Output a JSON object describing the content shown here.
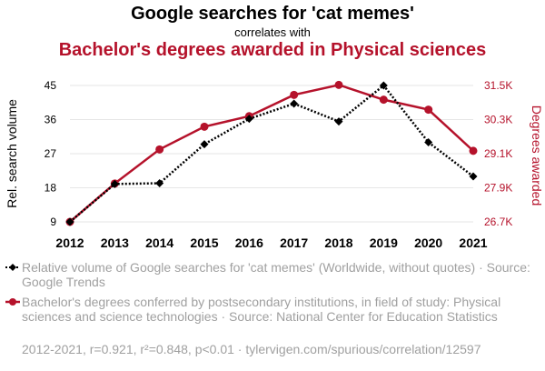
{
  "header": {
    "title_top": "Google searches for 'cat memes'",
    "connector": "correlates with",
    "title_bottom": "Bachelor's degrees awarded in Physical sciences"
  },
  "colors": {
    "series1": "#000000",
    "series2": "#b5122b",
    "grid": "#e6e6e6",
    "muted": "#a0a0a0"
  },
  "chart_data": {
    "type": "line",
    "x": [
      "2012",
      "2013",
      "2014",
      "2015",
      "2016",
      "2017",
      "2018",
      "2019",
      "2020",
      "2021"
    ],
    "ylabel_left": "Rel. search volume",
    "ylabel_right": "Degrees awarded",
    "yticks_left": [
      "9",
      "18",
      "27",
      "36",
      "45"
    ],
    "yticks_right": [
      "26.7K",
      "27.9K",
      "29.1K",
      "30.3K",
      "31.5K"
    ],
    "ylim_left": [
      9,
      45
    ],
    "ylim_right": [
      26700,
      31500
    ],
    "grid": true,
    "series": [
      {
        "name": "Relative volume of Google searches for 'cat memes' (Worldwide, without quotes) · Source: Google Trends",
        "axis": "left",
        "style": "dotted-diamond",
        "values": [
          9,
          19,
          19.2,
          29.5,
          36.2,
          40.2,
          35.5,
          45,
          30,
          21
        ]
      },
      {
        "name": "Bachelor's degrees conferred by postsecondary institutions, in field of study: Physical sciences and science technologies · Source: National Center for Education Statistics",
        "axis": "right",
        "style": "solid-circle",
        "values": [
          26700,
          28050,
          29250,
          30050,
          30420,
          31170,
          31520,
          31000,
          30650,
          29200
        ]
      }
    ]
  },
  "legend": {
    "series1": "Relative volume of Google searches for 'cat memes' (Worldwide, without quotes) · Source: Google Trends",
    "series2": "Bachelor's degrees conferred by postsecondary institutions, in field of study: Physical sciences and science technologies · Source: National Center for Education Statistics"
  },
  "footer": "2012-2021, r=0.921, r²=0.848, p<0.01 · tylervigen.com/spurious/correlation/12597"
}
